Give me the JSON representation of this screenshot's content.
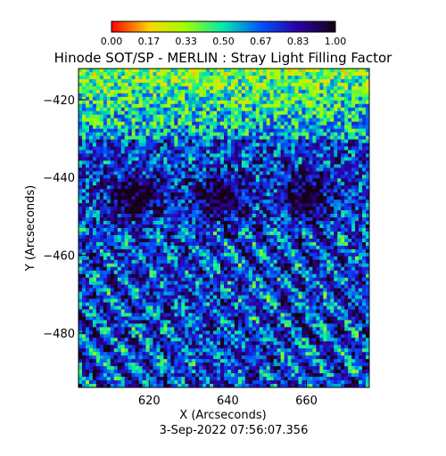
{
  "chart_data": {
    "type": "heatmap",
    "title": "Hinode SOT/SP - MERLIN : Stray Light Filling Factor",
    "xlabel": "X (Arcseconds)",
    "ylabel": "Y (Arcseconds)",
    "date_text": "3-Sep-2022 07:56:07.356",
    "xlim": [
      602,
      676
    ],
    "ylim": [
      -494,
      -412
    ],
    "x_ticks": [
      620,
      640,
      660
    ],
    "y_ticks": [
      -420,
      -440,
      -460,
      -480
    ],
    "colorbar": {
      "ticks": [
        "0.00",
        "0.17",
        "0.33",
        "0.50",
        "0.67",
        "0.83",
        "1.00"
      ],
      "range": [
        0,
        1
      ],
      "colormap": "rainbow (red-yellow-green-cyan-blue-black)",
      "colors": [
        "#ff0000",
        "#ffd500",
        "#a0ff00",
        "#00e8b0",
        "#0050ff",
        "#2b00a8",
        "#150015"
      ]
    },
    "description_of_field": "Three repeated scan panels; values near 0.4-0.7 at top (green/yellow), dark (~0.95-1.0) umbra-like regions near y=-445 around x=615, 638, 660; mixed blue/dark with green/yellow speckles below.",
    "dark_cores": [
      {
        "x": 616,
        "y": -445
      },
      {
        "x": 638,
        "y": -445
      },
      {
        "x": 660,
        "y": -445
      }
    ],
    "panel_boundaries_x": [
      625,
      647
    ]
  }
}
